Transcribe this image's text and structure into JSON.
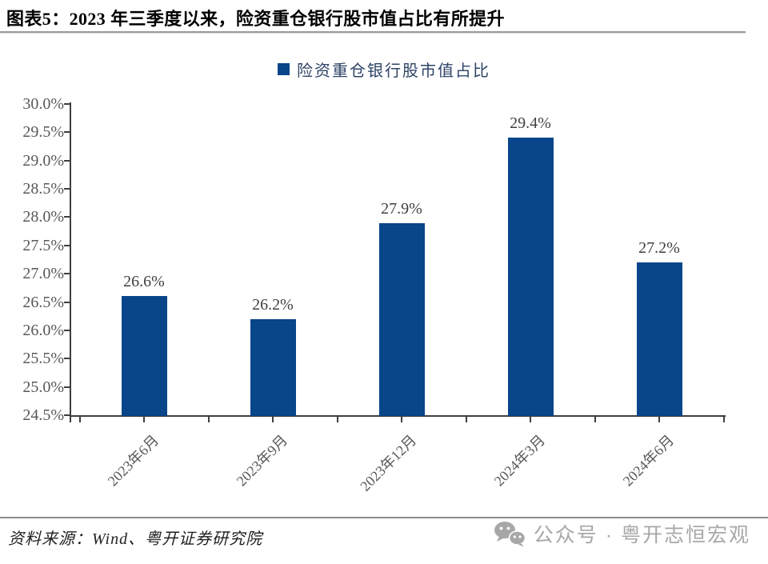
{
  "header": {
    "title": "图表5：2023 年三季度以来，险资重仓银行股市值占比有所提升"
  },
  "legend": {
    "label": "险资重仓银行股市值占比",
    "swatch_color": "#084589",
    "text_color": "#2e4466"
  },
  "chart_data": {
    "type": "bar",
    "title": "险资重仓银行股市值占比",
    "categories": [
      "2023年6月",
      "2023年9月",
      "2023年12月",
      "2024年3月",
      "2024年6月"
    ],
    "values": [
      26.6,
      26.2,
      27.9,
      29.4,
      27.2
    ],
    "value_labels": [
      "26.6%",
      "26.2%",
      "27.9%",
      "29.4%",
      "27.2%"
    ],
    "ylim": [
      24.5,
      30.0
    ],
    "ytick_step": 0.5,
    "ytick_labels": [
      "30.0%",
      "29.5%",
      "29.0%",
      "28.5%",
      "28.0%",
      "27.5%",
      "27.0%",
      "26.5%",
      "26.0%",
      "25.5%",
      "25.0%",
      "24.5%"
    ],
    "xlabel": "",
    "ylabel": "",
    "grid": false,
    "legend_position": "top-center",
    "x_label_rotation": 45,
    "bar_color": "#084589",
    "axis_color": "#3f3f3f",
    "tick_label_color": "#595959",
    "value_label_color": "#404040"
  },
  "footer": {
    "source": "资料来源：Wind、粤开证券研究院"
  },
  "watermark": {
    "icon": "wechat-icon",
    "label": "公众号 · 粤开志恒宏观",
    "color": "#a7a7a7"
  }
}
